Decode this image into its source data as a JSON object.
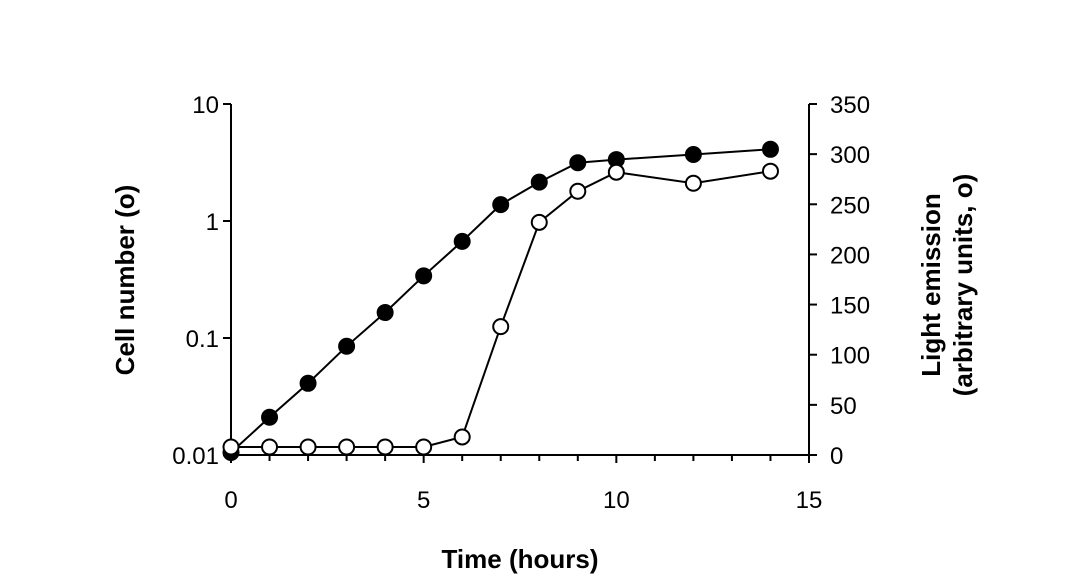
{
  "chart_data": {
    "type": "line",
    "x_axis": {
      "label": "Time (hours)",
      "range": [
        0,
        15
      ],
      "major_ticks": [
        0,
        5,
        10,
        15
      ],
      "tick_labels": [
        "0",
        "5",
        "10",
        "15"
      ],
      "minor_tick_step": 1
    },
    "y_axis_left": {
      "label": "Cell number (o)",
      "scale": "log",
      "range": [
        0.01,
        10
      ],
      "ticks": [
        0.01,
        0.1,
        1,
        10
      ],
      "tick_labels": [
        "0.01",
        "0.1",
        "1",
        "10"
      ]
    },
    "y_axis_right": {
      "label_line1": "Light emission",
      "label_line2": "(arbitrary units, o)",
      "scale": "linear",
      "range": [
        0,
        350
      ],
      "ticks": [
        0,
        50,
        100,
        150,
        200,
        250,
        300,
        350
      ],
      "tick_labels": [
        "0",
        "50",
        "100",
        "150",
        "200",
        "250",
        "300",
        "350"
      ]
    },
    "grid": false,
    "legend": "none",
    "series": [
      {
        "marker": "filled-circle",
        "axis": "left",
        "x": [
          0,
          1,
          2,
          3,
          4,
          5,
          6,
          7,
          8,
          9,
          10,
          12,
          14
        ],
        "y": [
          0.0105,
          0.021,
          0.041,
          0.085,
          0.165,
          0.34,
          0.67,
          1.38,
          2.15,
          3.15,
          3.35,
          3.7,
          4.1
        ]
      },
      {
        "marker": "open-circle",
        "axis": "right",
        "x": [
          0,
          1,
          2,
          3,
          4,
          5,
          6,
          7,
          8,
          9,
          10,
          12,
          14
        ],
        "y": [
          8,
          8,
          8,
          8,
          8,
          8,
          18,
          128,
          232,
          263,
          282,
          271,
          283
        ]
      }
    ]
  }
}
